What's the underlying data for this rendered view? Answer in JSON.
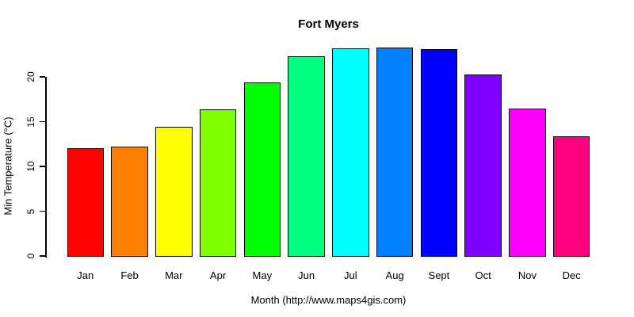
{
  "chart_data": {
    "type": "bar",
    "title": "Fort Myers",
    "xlabel": "Month (http://www.maps4gis.com)",
    "ylabel": "Min Temperature (°C)",
    "categories": [
      "Jan",
      "Feb",
      "Mar",
      "Apr",
      "May",
      "Jun",
      "Jul",
      "Aug",
      "Sept",
      "Oct",
      "Nov",
      "Dec"
    ],
    "values": [
      12.0,
      12.2,
      14.4,
      16.4,
      19.4,
      22.3,
      23.2,
      23.3,
      23.1,
      20.3,
      16.5,
      13.4
    ],
    "bar_colors": [
      "#FF0000",
      "#FF8000",
      "#FFFF00",
      "#80FF00",
      "#00FF00",
      "#00FF80",
      "#00FFFF",
      "#0080FF",
      "#0000FF",
      "#8000FF",
      "#FF00FF",
      "#FF0080"
    ],
    "bar_border_color": "#000000",
    "yticks": [
      0,
      5,
      10,
      15,
      20
    ],
    "ylim": [
      0,
      20
    ],
    "grid": false,
    "legend_position": "none",
    "background_color": "#FFFFFF"
  }
}
